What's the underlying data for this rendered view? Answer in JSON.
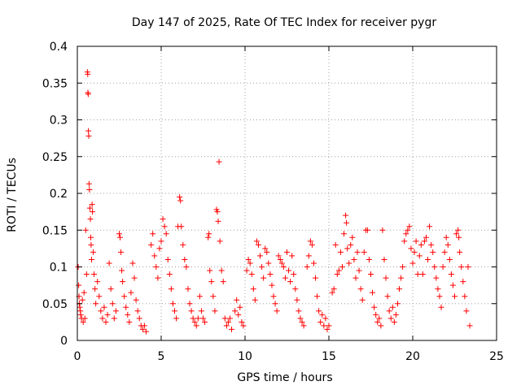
{
  "chart_data": {
    "type": "scatter",
    "title": "Day 147 of 2025, Rate Of TEC Index for receiver pygr",
    "xlabel": "GPS time / hours",
    "ylabel": "ROTI / TECUs",
    "xlim": [
      0,
      25
    ],
    "ylim": [
      0,
      0.4
    ],
    "xticks": [
      "0",
      "5",
      "10",
      "15",
      "20",
      "25"
    ],
    "yticks": [
      "0",
      "0.05",
      "0.1",
      "0.15",
      "0.2",
      "0.25",
      "0.3",
      "0.35",
      "0.4"
    ],
    "grid": true,
    "marker": "plus",
    "color": "#ff0000",
    "series": [
      {
        "points": [
          [
            0.05,
            0.1
          ],
          [
            0.08,
            0.075
          ],
          [
            0.1,
            0.06
          ],
          [
            0.12,
            0.05
          ],
          [
            0.15,
            0.045
          ],
          [
            0.18,
            0.04
          ],
          [
            0.2,
            0.035
          ],
          [
            0.25,
            0.03
          ],
          [
            0.3,
            0.055
          ],
          [
            0.35,
            0.025
          ],
          [
            0.4,
            0.065
          ],
          [
            0.45,
            0.03
          ],
          [
            0.5,
            0.15
          ],
          [
            0.55,
            0.09
          ],
          [
            0.6,
            0.365
          ],
          [
            0.62,
            0.362
          ],
          [
            0.63,
            0.337
          ],
          [
            0.65,
            0.335
          ],
          [
            0.66,
            0.285
          ],
          [
            0.68,
            0.278
          ],
          [
            0.7,
            0.213
          ],
          [
            0.72,
            0.205
          ],
          [
            0.75,
            0.18
          ],
          [
            0.78,
            0.165
          ],
          [
            0.8,
            0.14
          ],
          [
            0.82,
            0.13
          ],
          [
            0.85,
            0.11
          ],
          [
            0.88,
            0.185
          ],
          [
            0.9,
            0.175
          ],
          [
            0.95,
            0.12
          ],
          [
            1.0,
            0.09
          ],
          [
            1.05,
            0.07
          ],
          [
            1.1,
            0.05
          ],
          [
            1.2,
            0.08
          ],
          [
            1.3,
            0.06
          ],
          [
            1.4,
            0.04
          ],
          [
            1.5,
            0.03
          ],
          [
            1.6,
            0.045
          ],
          [
            1.7,
            0.025
          ],
          [
            1.8,
            0.035
          ],
          [
            1.9,
            0.105
          ],
          [
            2.0,
            0.07
          ],
          [
            2.1,
            0.05
          ],
          [
            2.2,
            0.03
          ],
          [
            2.3,
            0.04
          ],
          [
            2.5,
            0.145
          ],
          [
            2.55,
            0.14
          ],
          [
            2.6,
            0.12
          ],
          [
            2.65,
            0.095
          ],
          [
            2.7,
            0.08
          ],
          [
            2.8,
            0.06
          ],
          [
            2.9,
            0.045
          ],
          [
            3.0,
            0.035
          ],
          [
            3.1,
            0.025
          ],
          [
            3.2,
            0.065
          ],
          [
            3.3,
            0.105
          ],
          [
            3.4,
            0.085
          ],
          [
            3.5,
            0.055
          ],
          [
            3.6,
            0.04
          ],
          [
            3.7,
            0.03
          ],
          [
            3.8,
            0.02
          ],
          [
            3.9,
            0.015
          ],
          [
            4.0,
            0.02
          ],
          [
            4.1,
            0.012
          ],
          [
            4.4,
            0.13
          ],
          [
            4.5,
            0.145
          ],
          [
            4.6,
            0.115
          ],
          [
            4.7,
            0.1
          ],
          [
            4.8,
            0.085
          ],
          [
            4.9,
            0.125
          ],
          [
            5.0,
            0.135
          ],
          [
            5.1,
            0.165
          ],
          [
            5.2,
            0.155
          ],
          [
            5.3,
            0.145
          ],
          [
            5.4,
            0.11
          ],
          [
            5.5,
            0.09
          ],
          [
            5.6,
            0.07
          ],
          [
            5.7,
            0.05
          ],
          [
            5.8,
            0.04
          ],
          [
            5.9,
            0.03
          ],
          [
            6.0,
            0.155
          ],
          [
            6.1,
            0.195
          ],
          [
            6.15,
            0.19
          ],
          [
            6.2,
            0.155
          ],
          [
            6.3,
            0.13
          ],
          [
            6.4,
            0.11
          ],
          [
            6.5,
            0.1
          ],
          [
            6.6,
            0.07
          ],
          [
            6.7,
            0.05
          ],
          [
            6.8,
            0.04
          ],
          [
            6.9,
            0.03
          ],
          [
            7.0,
            0.025
          ],
          [
            7.1,
            0.02
          ],
          [
            7.2,
            0.03
          ],
          [
            7.3,
            0.06
          ],
          [
            7.4,
            0.04
          ],
          [
            7.5,
            0.03
          ],
          [
            7.6,
            0.025
          ],
          [
            7.8,
            0.14
          ],
          [
            7.85,
            0.145
          ],
          [
            7.9,
            0.095
          ],
          [
            8.0,
            0.08
          ],
          [
            8.1,
            0.06
          ],
          [
            8.2,
            0.04
          ],
          [
            8.3,
            0.178
          ],
          [
            8.35,
            0.175
          ],
          [
            8.4,
            0.162
          ],
          [
            8.45,
            0.243
          ],
          [
            8.5,
            0.135
          ],
          [
            8.6,
            0.095
          ],
          [
            8.7,
            0.08
          ],
          [
            8.8,
            0.03
          ],
          [
            8.9,
            0.02
          ],
          [
            9.0,
            0.025
          ],
          [
            9.1,
            0.03
          ],
          [
            9.2,
            0.015
          ],
          [
            9.4,
            0.04
          ],
          [
            9.5,
            0.055
          ],
          [
            9.6,
            0.035
          ],
          [
            9.7,
            0.045
          ],
          [
            9.8,
            0.025
          ],
          [
            9.9,
            0.02
          ],
          [
            10.1,
            0.095
          ],
          [
            10.2,
            0.11
          ],
          [
            10.3,
            0.105
          ],
          [
            10.4,
            0.09
          ],
          [
            10.5,
            0.07
          ],
          [
            10.6,
            0.055
          ],
          [
            10.7,
            0.135
          ],
          [
            10.8,
            0.13
          ],
          [
            10.9,
            0.115
          ],
          [
            11.0,
            0.1
          ],
          [
            11.1,
            0.085
          ],
          [
            11.2,
            0.125
          ],
          [
            11.3,
            0.12
          ],
          [
            11.4,
            0.105
          ],
          [
            11.5,
            0.09
          ],
          [
            11.6,
            0.075
          ],
          [
            11.7,
            0.06
          ],
          [
            11.8,
            0.05
          ],
          [
            11.9,
            0.04
          ],
          [
            12.0,
            0.115
          ],
          [
            12.1,
            0.11
          ],
          [
            12.2,
            0.105
          ],
          [
            12.3,
            0.1
          ],
          [
            12.4,
            0.085
          ],
          [
            12.5,
            0.12
          ],
          [
            12.6,
            0.095
          ],
          [
            12.7,
            0.08
          ],
          [
            12.8,
            0.115
          ],
          [
            12.9,
            0.09
          ],
          [
            13.0,
            0.07
          ],
          [
            13.1,
            0.055
          ],
          [
            13.2,
            0.04
          ],
          [
            13.3,
            0.03
          ],
          [
            13.4,
            0.025
          ],
          [
            13.5,
            0.02
          ],
          [
            13.7,
            0.1
          ],
          [
            13.8,
            0.115
          ],
          [
            13.9,
            0.135
          ],
          [
            14.0,
            0.13
          ],
          [
            14.1,
            0.105
          ],
          [
            14.2,
            0.085
          ],
          [
            14.3,
            0.06
          ],
          [
            14.4,
            0.04
          ],
          [
            14.5,
            0.025
          ],
          [
            14.6,
            0.035
          ],
          [
            14.7,
            0.02
          ],
          [
            14.8,
            0.03
          ],
          [
            14.9,
            0.015
          ],
          [
            15.0,
            0.02
          ],
          [
            15.2,
            0.065
          ],
          [
            15.3,
            0.07
          ],
          [
            15.4,
            0.13
          ],
          [
            15.5,
            0.09
          ],
          [
            15.6,
            0.095
          ],
          [
            15.7,
            0.12
          ],
          [
            15.8,
            0.1
          ],
          [
            15.9,
            0.145
          ],
          [
            16.0,
            0.17
          ],
          [
            16.05,
            0.16
          ],
          [
            16.1,
            0.125
          ],
          [
            16.2,
            0.105
          ],
          [
            16.3,
            0.13
          ],
          [
            16.4,
            0.14
          ],
          [
            16.5,
            0.11
          ],
          [
            16.6,
            0.085
          ],
          [
            16.7,
            0.12
          ],
          [
            16.8,
            0.095
          ],
          [
            16.9,
            0.07
          ],
          [
            17.0,
            0.055
          ],
          [
            17.1,
            0.12
          ],
          [
            17.2,
            0.15
          ],
          [
            17.3,
            0.15
          ],
          [
            17.4,
            0.11
          ],
          [
            17.5,
            0.09
          ],
          [
            17.6,
            0.065
          ],
          [
            17.7,
            0.045
          ],
          [
            17.8,
            0.035
          ],
          [
            17.9,
            0.025
          ],
          [
            18.0,
            0.03
          ],
          [
            18.1,
            0.02
          ],
          [
            18.2,
            0.15
          ],
          [
            18.3,
            0.11
          ],
          [
            18.4,
            0.085
          ],
          [
            18.5,
            0.06
          ],
          [
            18.6,
            0.04
          ],
          [
            18.7,
            0.03
          ],
          [
            18.8,
            0.045
          ],
          [
            18.9,
            0.025
          ],
          [
            19.0,
            0.035
          ],
          [
            19.1,
            0.05
          ],
          [
            19.2,
            0.07
          ],
          [
            19.3,
            0.085
          ],
          [
            19.4,
            0.1
          ],
          [
            19.5,
            0.135
          ],
          [
            19.6,
            0.145
          ],
          [
            19.7,
            0.15
          ],
          [
            19.8,
            0.155
          ],
          [
            19.9,
            0.125
          ],
          [
            20.0,
            0.105
          ],
          [
            20.1,
            0.12
          ],
          [
            20.2,
            0.135
          ],
          [
            20.3,
            0.09
          ],
          [
            20.4,
            0.115
          ],
          [
            20.5,
            0.13
          ],
          [
            20.6,
            0.09
          ],
          [
            20.7,
            0.135
          ],
          [
            20.8,
            0.14
          ],
          [
            20.9,
            0.11
          ],
          [
            21.0,
            0.155
          ],
          [
            21.1,
            0.13
          ],
          [
            21.2,
            0.12
          ],
          [
            21.3,
            0.1
          ],
          [
            21.4,
            0.085
          ],
          [
            21.5,
            0.07
          ],
          [
            21.6,
            0.06
          ],
          [
            21.7,
            0.045
          ],
          [
            21.8,
            0.1
          ],
          [
            21.9,
            0.12
          ],
          [
            22.0,
            0.14
          ],
          [
            22.1,
            0.13
          ],
          [
            22.2,
            0.11
          ],
          [
            22.3,
            0.09
          ],
          [
            22.4,
            0.075
          ],
          [
            22.5,
            0.06
          ],
          [
            22.6,
            0.145
          ],
          [
            22.7,
            0.15
          ],
          [
            22.75,
            0.14
          ],
          [
            22.8,
            0.12
          ],
          [
            22.9,
            0.1
          ],
          [
            23.0,
            0.08
          ],
          [
            23.1,
            0.06
          ],
          [
            23.2,
            0.04
          ],
          [
            23.3,
            0.1
          ],
          [
            23.4,
            0.02
          ]
        ]
      }
    ]
  }
}
